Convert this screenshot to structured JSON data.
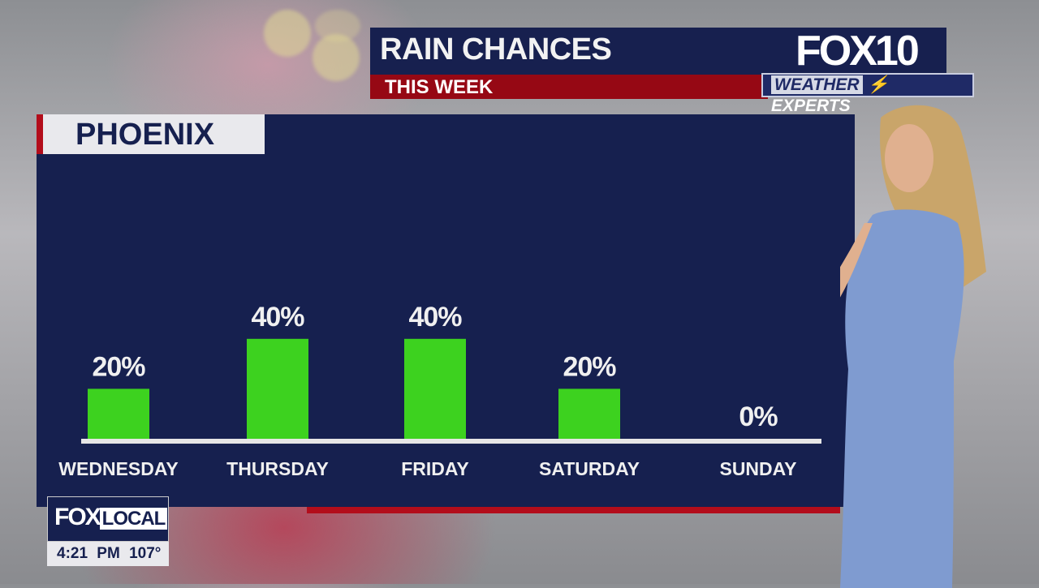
{
  "header": {
    "title": "RAIN CHANCES",
    "subtitle": "THIS WEEK"
  },
  "branding": {
    "station": "FOX10",
    "segment_weather": "WEATHER",
    "segment_experts": "EXPERTS",
    "local_fox": "FOX",
    "local_word": "LOCAL"
  },
  "ticker": {
    "time": "4:21 PM",
    "temperature": "107°"
  },
  "location": "PHOENIX",
  "colors": {
    "panel": "#16204f",
    "bar": "#3dd21f",
    "accent_red": "#b30d1b"
  },
  "chart_data": {
    "type": "bar",
    "title": "RAIN CHANCES",
    "categories": [
      "WEDNESDAY",
      "THURSDAY",
      "FRIDAY",
      "SATURDAY",
      "SUNDAY"
    ],
    "values": [
      20,
      40,
      40,
      20,
      0
    ],
    "data_labels": [
      "20%",
      "40%",
      "40%",
      "20%",
      "0%"
    ],
    "unit": "%",
    "grid": false
  }
}
